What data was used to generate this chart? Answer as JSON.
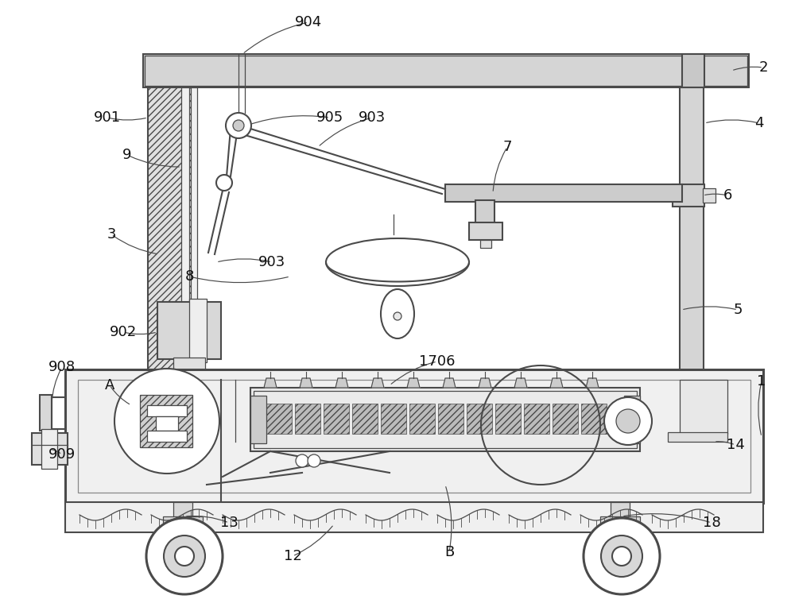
{
  "bg_color": "#ffffff",
  "line_color": "#4a4a4a",
  "label_color": "#111111",
  "fig_width": 10.0,
  "fig_height": 7.64,
  "dpi": 100
}
